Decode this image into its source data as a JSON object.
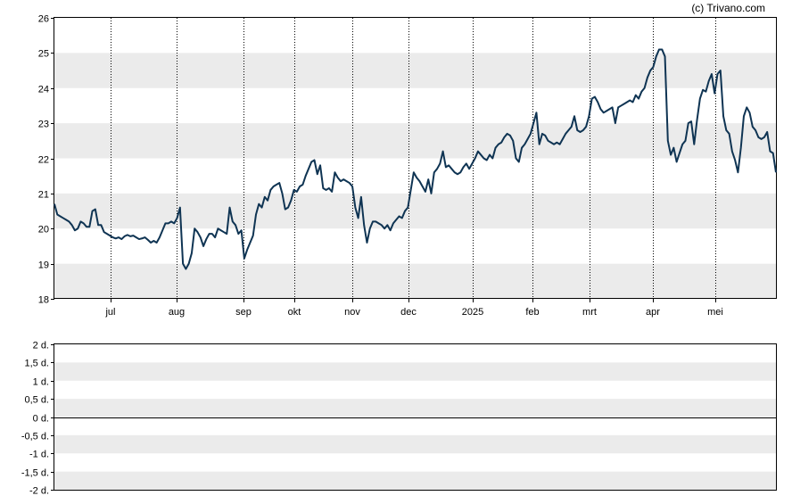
{
  "credit": "(c) Trivano.com",
  "colors": {
    "line": "#0f3453",
    "band": "#ebebeb",
    "background": "#ffffff",
    "axis": "#000000"
  },
  "chart_data": [
    {
      "type": "line",
      "name": "price",
      "ylim": [
        18,
        26
      ],
      "yticks": [
        "18",
        "19",
        "20",
        "21",
        "22",
        "23",
        "24",
        "25",
        "26"
      ],
      "xticks": [
        "jul",
        "aug",
        "sep",
        "okt",
        "nov",
        "dec",
        "2025",
        "feb",
        "mrt",
        "apr",
        "mei"
      ],
      "grid": "horizontal bands, dotted vertical lines at month starts",
      "series": [
        {
          "values": [
            20.7,
            20.4,
            20.35,
            20.3,
            20.25,
            20.2,
            20.1,
            19.95,
            20.0,
            20.2,
            20.15,
            20.05,
            20.05,
            20.5,
            20.55,
            20.1,
            20.1,
            19.9,
            19.85,
            19.8,
            19.75,
            19.72,
            19.75,
            19.7,
            19.78,
            19.82,
            19.78,
            19.8,
            19.75,
            19.7,
            19.72,
            19.75,
            19.68,
            19.6,
            19.65,
            19.6,
            19.75,
            19.95,
            20.15,
            20.15,
            20.2,
            20.15,
            20.3,
            20.6,
            19.0,
            18.85,
            19.0,
            19.3,
            20.0,
            19.9,
            19.75,
            19.5,
            19.7,
            19.85,
            19.85,
            19.75,
            20.0,
            19.95,
            19.9,
            19.85,
            20.6,
            20.2,
            20.1,
            19.85,
            19.95,
            19.15,
            19.4,
            19.6,
            19.8,
            20.4,
            20.7,
            20.6,
            20.9,
            20.8,
            21.1,
            21.2,
            21.25,
            21.3,
            21.0,
            20.55,
            20.6,
            20.8,
            21.1,
            21.05,
            21.2,
            21.25,
            21.5,
            21.7,
            21.9,
            21.95,
            21.55,
            21.8,
            21.15,
            21.1,
            21.15,
            21.05,
            21.6,
            21.45,
            21.35,
            21.4,
            21.35,
            21.3,
            21.2,
            20.6,
            20.3,
            20.9,
            20.1,
            19.6,
            20.0,
            20.2,
            20.2,
            20.15,
            20.1,
            20.0,
            20.1,
            19.95,
            20.15,
            20.25,
            20.35,
            20.3,
            20.5,
            20.6,
            21.1,
            21.6,
            21.45,
            21.35,
            21.2,
            21.05,
            21.4,
            21.0,
            21.6,
            21.7,
            21.85,
            22.2,
            21.75,
            21.8,
            21.7,
            21.6,
            21.55,
            21.6,
            21.75,
            21.85,
            21.7,
            21.85,
            22.0,
            22.2,
            22.1,
            22.0,
            21.95,
            22.1,
            22.0,
            22.3,
            22.4,
            22.45,
            22.6,
            22.7,
            22.65,
            22.5,
            22.0,
            21.9,
            22.3,
            22.4,
            22.55,
            22.7,
            23.0,
            23.3,
            22.4,
            22.7,
            22.65,
            22.5,
            22.45,
            22.4,
            22.45,
            22.4,
            22.55,
            22.7,
            22.8,
            22.9,
            23.2,
            22.8,
            22.75,
            22.8,
            22.9,
            23.2,
            23.7,
            23.75,
            23.6,
            23.4,
            23.3,
            23.35,
            23.4,
            23.45,
            23.0,
            23.45,
            23.5,
            23.55,
            23.6,
            23.65,
            23.6,
            23.8,
            23.7,
            23.9,
            24.0,
            24.3,
            24.5,
            24.6,
            24.9,
            25.1,
            25.1,
            24.9,
            22.5,
            22.1,
            22.3,
            21.9,
            22.15,
            22.4,
            22.5,
            23.0,
            23.05,
            22.4,
            23.1,
            23.7,
            23.95,
            23.9,
            24.2,
            24.4,
            23.85,
            24.4,
            24.5,
            23.2,
            22.8,
            22.7,
            22.2,
            21.95,
            21.6,
            22.3,
            23.2,
            23.45,
            23.3,
            22.9,
            22.8,
            22.6,
            22.55,
            22.6,
            22.75,
            22.2,
            22.15,
            21.6
          ]
        }
      ]
    },
    {
      "type": "line",
      "name": "days",
      "ylim": [
        -2,
        2
      ],
      "yticks": [
        "2 d.",
        "1,5 d.",
        "1 d.",
        "0,5 d.",
        "0 d.",
        "-0,5 d.",
        "-1 d.",
        "-1,5 d.",
        "-2 d."
      ],
      "baseline": 0,
      "series": []
    }
  ]
}
